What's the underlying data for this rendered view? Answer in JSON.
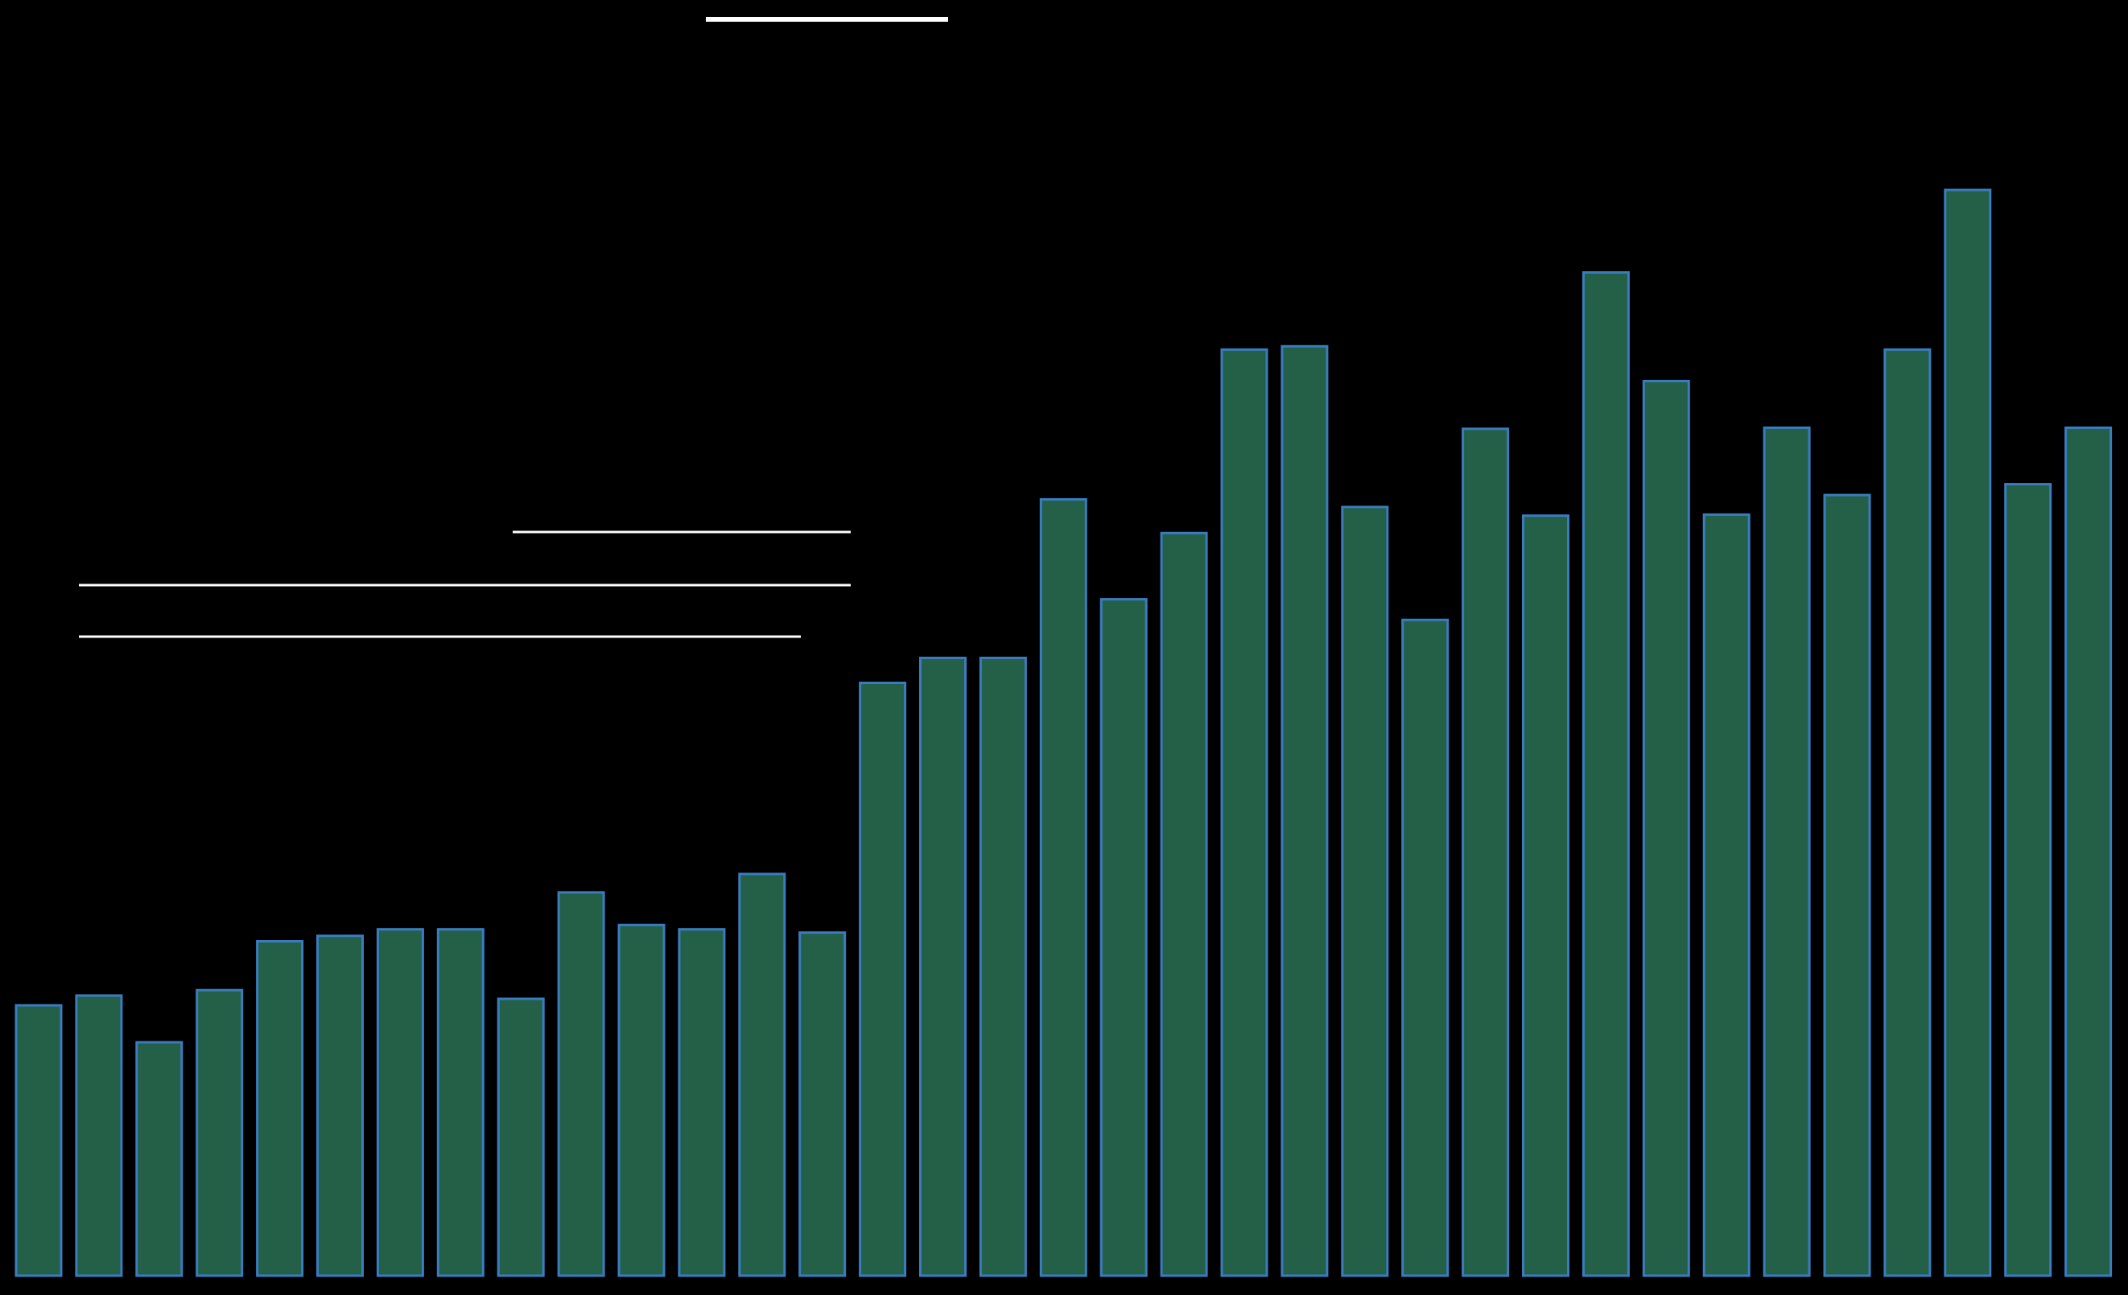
{
  "chart_data": {
    "type": "bar",
    "categories": [
      null,
      null,
      null,
      null,
      null,
      null,
      null,
      null,
      null,
      null,
      null,
      null,
      null,
      null,
      null,
      null,
      null,
      null,
      null,
      null,
      null,
      null,
      null,
      null,
      null,
      null,
      null,
      null,
      null,
      null,
      null,
      null,
      null,
      null,
      null
    ],
    "values": [
      24.9,
      25.8,
      21.5,
      26.3,
      30.8,
      31.3,
      31.9,
      31.9,
      25.5,
      35.3,
      32.3,
      31.9,
      37,
      31.6,
      54.6,
      56.9,
      56.9,
      71.5,
      62.3,
      68.4,
      85.3,
      85.6,
      70.8,
      60.4,
      78,
      70,
      92.4,
      82.4,
      70.1,
      78.1,
      71.9,
      85.3,
      100,
      72.9,
      78.1
    ],
    "color": "#236047",
    "edge_color": "#3a7cc0",
    "ylim": [
      0,
      100
    ]
  }
}
